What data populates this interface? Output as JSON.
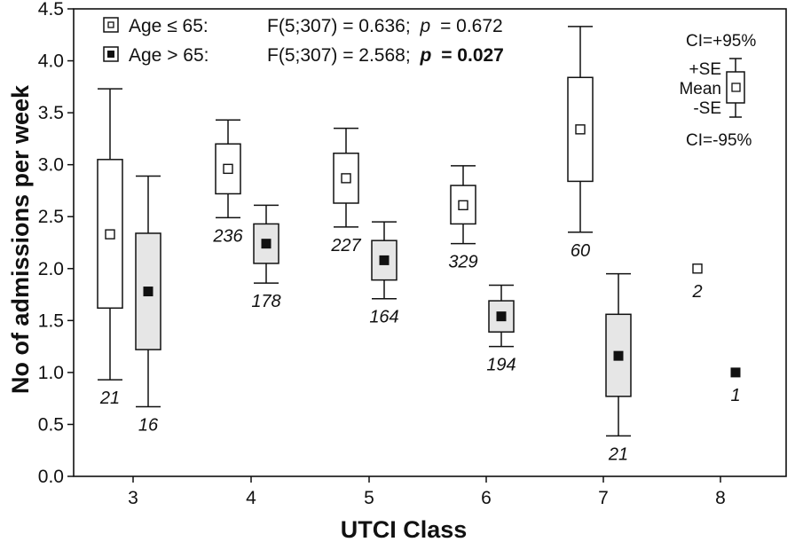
{
  "chart_data": {
    "type": "boxplot",
    "xlabel": "UTCI Class",
    "ylabel": "No of admissions per week",
    "categories": [
      "3",
      "4",
      "5",
      "6",
      "7",
      "8"
    ],
    "ylim": [
      0,
      4.5
    ],
    "yticks": [
      "0.0",
      "0.5",
      "1.0",
      "1.5",
      "2.0",
      "2.5",
      "3.0",
      "3.5",
      "4.0",
      "4.5"
    ],
    "grid": false,
    "legend": [
      {
        "marker": "open-square",
        "group": "Age ≤ 65:",
        "stat": "F(5;307) = 0.636;",
        "p_label": "p",
        "p_value": "= 0.672",
        "p_bold": false
      },
      {
        "marker": "filled-square",
        "group": "Age > 65:",
        "stat": "F(5;307) = 2.568;",
        "p_label": "p",
        "p_value": "= 0.027",
        "p_bold": true
      }
    ],
    "key": {
      "ci_upper": "CI=+95%",
      "se_upper": "+SE",
      "mean": "Mean",
      "se_lower": "-SE",
      "ci_lower": "CI=-95%"
    },
    "series": [
      {
        "name": "Age ≤ 65",
        "marker": "open",
        "box_fill": "#ffffff",
        "points": [
          {
            "x": "3",
            "mean": 2.33,
            "se_low": 1.62,
            "se_high": 3.05,
            "ci_low": 0.93,
            "ci_high": 3.73,
            "n": "21"
          },
          {
            "x": "4",
            "mean": 2.96,
            "se_low": 2.72,
            "se_high": 3.2,
            "ci_low": 2.49,
            "ci_high": 3.43,
            "n": "236"
          },
          {
            "x": "5",
            "mean": 2.87,
            "se_low": 2.63,
            "se_high": 3.11,
            "ci_low": 2.4,
            "ci_high": 3.35,
            "n": "227"
          },
          {
            "x": "6",
            "mean": 2.61,
            "se_low": 2.43,
            "se_high": 2.8,
            "ci_low": 2.24,
            "ci_high": 2.99,
            "n": "329"
          },
          {
            "x": "7",
            "mean": 3.34,
            "se_low": 2.84,
            "se_high": 3.84,
            "ci_low": 2.35,
            "ci_high": 4.33,
            "n": "60"
          },
          {
            "x": "8",
            "mean": 2.0,
            "n": "2"
          }
        ]
      },
      {
        "name": "Age > 65",
        "marker": "filled",
        "box_fill": "#e6e6e6",
        "points": [
          {
            "x": "3",
            "mean": 1.78,
            "se_low": 1.22,
            "se_high": 2.34,
            "ci_low": 0.67,
            "ci_high": 2.89,
            "n": "16"
          },
          {
            "x": "4",
            "mean": 2.24,
            "se_low": 2.05,
            "se_high": 2.43,
            "ci_low": 1.86,
            "ci_high": 2.61,
            "n": "178"
          },
          {
            "x": "5",
            "mean": 2.08,
            "se_low": 1.89,
            "se_high": 2.27,
            "ci_low": 1.71,
            "ci_high": 2.45,
            "n": "164"
          },
          {
            "x": "6",
            "mean": 1.54,
            "se_low": 1.39,
            "se_high": 1.69,
            "ci_low": 1.25,
            "ci_high": 1.84,
            "n": "194"
          },
          {
            "x": "7",
            "mean": 1.16,
            "se_low": 0.77,
            "se_high": 1.56,
            "ci_low": 0.39,
            "ci_high": 1.95,
            "n": "21"
          },
          {
            "x": "8",
            "mean": 1.0,
            "n": "1"
          }
        ]
      }
    ]
  }
}
